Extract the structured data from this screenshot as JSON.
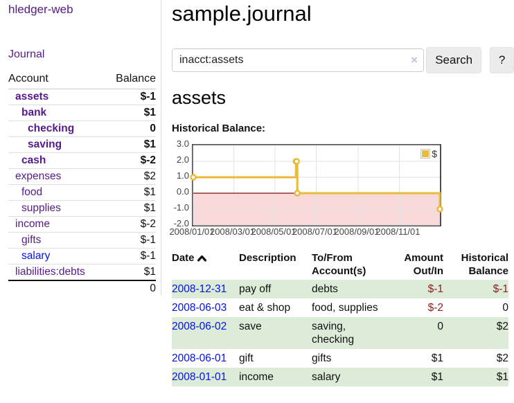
{
  "app_title": "hledger-web",
  "sidebar": {
    "nav_journal": "Journal",
    "accounts": {
      "header_account": "Account",
      "header_balance": "Balance",
      "rows": [
        {
          "name": "assets",
          "balance": "$-1",
          "level": 1,
          "in_filter": true,
          "negative": true,
          "link": "purple"
        },
        {
          "name": "bank",
          "balance": "$1",
          "level": 2,
          "in_filter": true,
          "negative": false,
          "link": "purple"
        },
        {
          "name": "checking",
          "balance": "0",
          "level": 3,
          "in_filter": true,
          "negative": false,
          "link": "purple"
        },
        {
          "name": "saving",
          "balance": "$1",
          "level": 3,
          "in_filter": true,
          "negative": false,
          "link": "purple"
        },
        {
          "name": "cash",
          "balance": "$-2",
          "level": 2,
          "in_filter": true,
          "negative": true,
          "link": "purple"
        },
        {
          "name": "expenses",
          "balance": "$2",
          "level": 1,
          "in_filter": false,
          "negative": false,
          "link": "purple"
        },
        {
          "name": "food",
          "balance": "$1",
          "level": 2,
          "in_filter": false,
          "negative": false,
          "link": "purple"
        },
        {
          "name": "supplies",
          "balance": "$1",
          "level": 2,
          "in_filter": false,
          "negative": false,
          "link": "purple"
        },
        {
          "name": "income",
          "balance": "$-2",
          "level": 1,
          "in_filter": false,
          "negative": true,
          "link": "purple"
        },
        {
          "name": "gifts",
          "balance": "$-1",
          "level": 2,
          "in_filter": false,
          "negative": true,
          "link": "purple"
        },
        {
          "name": "salary",
          "balance": "$-1",
          "level": 2,
          "in_filter": false,
          "negative": true,
          "link": "blue"
        },
        {
          "name": "liabilities:debts",
          "balance": "$1",
          "level": 1,
          "in_filter": false,
          "negative": false,
          "link": "purple"
        }
      ],
      "total": "0"
    }
  },
  "main": {
    "title": "sample.journal",
    "search": {
      "value": "inacct:assets",
      "clear_icon": "×",
      "search_button": "Search",
      "help_button": "?"
    },
    "account_heading": "assets",
    "chart_title": "Historical Balance:"
  },
  "register": {
    "headers": {
      "date": "Date",
      "description": "Description",
      "accounts": "To/From Account(s)",
      "amount": "Amount Out/In",
      "balance": "Historical Balance"
    },
    "sort": {
      "column": "date",
      "direction": "ascending"
    },
    "rows": [
      {
        "date": "2008-12-31",
        "description": "pay off",
        "accounts": "debts",
        "amount": "$-1",
        "amount_negative": true,
        "balance": "$-1",
        "balance_negative": true,
        "striped": true
      },
      {
        "date": "2008-06-03",
        "description": "eat & shop",
        "accounts": "food, supplies",
        "amount": "$-2",
        "amount_negative": true,
        "balance": "0",
        "balance_negative": false,
        "striped": false
      },
      {
        "date": "2008-06-02",
        "description": "save",
        "accounts": "saving, checking",
        "amount": "0",
        "amount_negative": false,
        "balance": "$2",
        "balance_negative": false,
        "striped": true
      },
      {
        "date": "2008-06-01",
        "description": "gift",
        "accounts": "gifts",
        "amount": "$1",
        "amount_negative": false,
        "balance": "$2",
        "balance_negative": false,
        "striped": false
      },
      {
        "date": "2008-01-01",
        "description": "income",
        "accounts": "salary",
        "amount": "$1",
        "amount_negative": false,
        "balance": "$1",
        "balance_negative": false,
        "striped": true
      }
    ]
  },
  "chart_data": {
    "type": "line",
    "step": true,
    "title": "Historical Balance",
    "series": [
      {
        "name": "$",
        "color": "#e8bb3d",
        "points": [
          [
            "2008-01-01",
            1
          ],
          [
            "2008-06-01",
            2
          ],
          [
            "2008-06-02",
            2
          ],
          [
            "2008-06-03",
            0
          ],
          [
            "2008-12-31",
            -1
          ]
        ]
      }
    ],
    "x_range": [
      "2008-01-01",
      "2008-12-31"
    ],
    "xticks": [
      "2008/01/01",
      "2008/03/01",
      "2008/05/01",
      "2008/07/01",
      "2008/09/01",
      "2008/11/01"
    ],
    "yticks": [
      3.0,
      2.0,
      1.0,
      0.0,
      -1.0,
      -2.0
    ],
    "ylim": [
      -2,
      3
    ],
    "legend": {
      "label": "$",
      "position": "top-right"
    },
    "grid": true,
    "negative_region_fill": "#f9dada",
    "zero_line_color": "#7d0d0d"
  },
  "colors": {
    "link_purple": "#551a8b",
    "link_blue": "#0010ee",
    "negative_strong": "#8f2020",
    "negative_soft": "#bf8080",
    "stripe_green": "#ddecd8",
    "chart_series_yellow": "#e8bb3d"
  }
}
